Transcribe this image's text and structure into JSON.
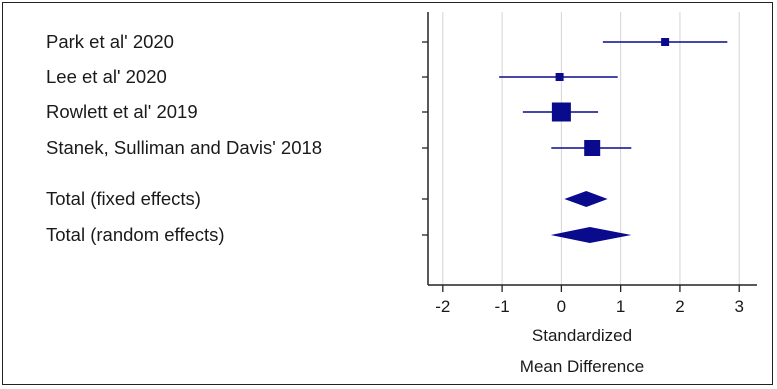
{
  "chart_data": {
    "type": "forest",
    "xlabel": [
      "Standardized",
      "Mean Difference"
    ],
    "xlim": [
      -2.25,
      3.3
    ],
    "xticks": [
      -2,
      -1,
      0,
      1,
      2,
      3
    ],
    "grid": true,
    "colors": {
      "marker": "#0a0a8c",
      "grid": "#d4d4d4",
      "axis": "#222222"
    },
    "studies": [
      {
        "name": "Park et al' 2020",
        "estimate": 1.75,
        "ci": [
          0.7,
          2.8
        ],
        "weight": "small"
      },
      {
        "name": "Lee et al' 2020",
        "estimate": -0.03,
        "ci": [
          -1.05,
          0.95
        ],
        "weight": "small"
      },
      {
        "name": "Rowlett et al' 2019",
        "estimate": 0.0,
        "ci": [
          -0.65,
          0.62
        ],
        "weight": "large"
      },
      {
        "name": "Stanek, Sulliman and Davis' 2018",
        "estimate": 0.52,
        "ci": [
          -0.17,
          1.18
        ],
        "weight": "medium"
      }
    ],
    "totals": [
      {
        "name": "Total (fixed effects)",
        "estimate": 0.42,
        "ci": [
          0.05,
          0.78
        ]
      },
      {
        "name": "Total (random effects)",
        "estimate": 0.48,
        "ci": [
          -0.18,
          1.18
        ]
      }
    ]
  }
}
